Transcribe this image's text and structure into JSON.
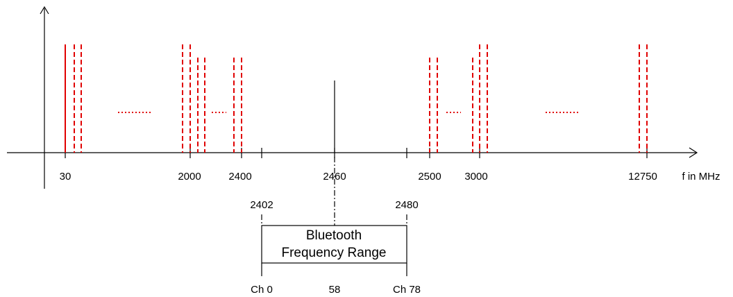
{
  "axis_labels": {
    "f30": "30",
    "f2000": "2000",
    "f2400": "2400",
    "f2460": "2460",
    "f2500": "2500",
    "f3000": "3000",
    "f12750": "12750",
    "unit": "f in MHz"
  },
  "band_labels": {
    "start": "2402",
    "end": "2480"
  },
  "box": {
    "line1": "Bluetooth",
    "line2": "Frequency Range"
  },
  "channels": {
    "first": "Ch 0",
    "middle": "58",
    "last": "Ch 78"
  },
  "colors": {
    "spur": "#e00000",
    "axis": "#000000"
  }
}
